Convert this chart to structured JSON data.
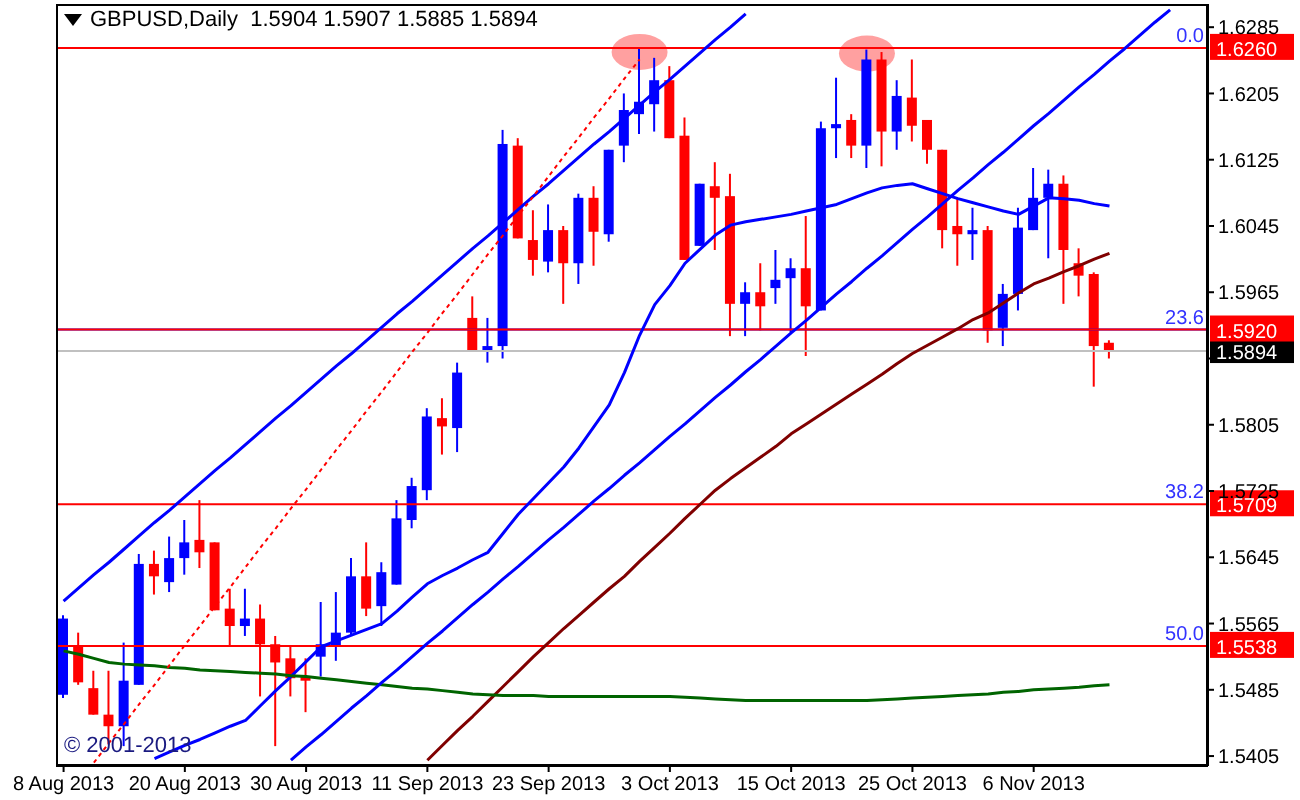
{
  "chart_data": {
    "type": "candlestick",
    "title": "GBPUSD,Daily  1.5904 1.5907 1.5885 1.5894",
    "categories": [
      "8 Aug 2013",
      null,
      null,
      null,
      null,
      null,
      null,
      null,
      "20 Aug 2013",
      null,
      null,
      null,
      null,
      null,
      null,
      null,
      "30 Aug 2013",
      null,
      null,
      null,
      null,
      null,
      null,
      null,
      "11 Sep 2013",
      null,
      null,
      null,
      null,
      null,
      null,
      null,
      "23 Sep 2013",
      null,
      null,
      null,
      null,
      null,
      null,
      null,
      "3 Oct 2013",
      null,
      null,
      null,
      null,
      null,
      null,
      null,
      "15 Oct 2013",
      null,
      null,
      null,
      null,
      null,
      null,
      null,
      "25 Oct 2013",
      null,
      null,
      null,
      null,
      null,
      null,
      null,
      "6 Nov 2013",
      null,
      null,
      null,
      null,
      null,
      null,
      null,
      null,
      null,
      null,
      null
    ],
    "ohlc": [
      [
        1.5479,
        1.5575,
        1.5475,
        1.5571
      ],
      [
        1.5537,
        1.5554,
        1.5491,
        1.5494
      ],
      [
        1.5487,
        1.5508,
        1.5455,
        1.5455
      ],
      [
        1.5455,
        1.5508,
        1.5419,
        1.5441
      ],
      [
        1.5441,
        1.5542,
        1.5417,
        1.5496
      ],
      [
        1.5491,
        1.5649,
        1.5491,
        1.5637
      ],
      [
        1.5637,
        1.5653,
        1.56,
        1.5622
      ],
      [
        1.5615,
        1.567,
        1.5603,
        1.5644
      ],
      [
        1.5644,
        1.569,
        1.5624,
        1.5663
      ],
      [
        1.5666,
        1.5714,
        1.5632,
        1.5651
      ],
      [
        1.5663,
        1.5663,
        1.5581,
        1.5581
      ],
      [
        1.5583,
        1.5607,
        1.5537,
        1.5562
      ],
      [
        1.5562,
        1.5607,
        1.555,
        1.5571
      ],
      [
        1.5571,
        1.5588,
        1.5477,
        1.554
      ],
      [
        1.554,
        1.555,
        1.5417,
        1.5518
      ],
      [
        1.5523,
        1.5537,
        1.5477,
        1.5499
      ],
      [
        1.5501,
        1.5523,
        1.5458,
        1.5496
      ],
      [
        1.5525,
        1.5591,
        1.5501,
        1.554
      ],
      [
        1.5537,
        1.5603,
        1.552,
        1.5554
      ],
      [
        1.5554,
        1.5644,
        1.5551,
        1.5622
      ],
      [
        1.5622,
        1.5663,
        1.5574,
        1.5583
      ],
      [
        1.5586,
        1.5639,
        1.5562,
        1.5627
      ],
      [
        1.5612,
        1.5714,
        1.5612,
        1.5692
      ],
      [
        1.569,
        1.5741,
        1.568,
        1.5731
      ],
      [
        1.5726,
        1.5825,
        1.5714,
        1.5815
      ],
      [
        1.5813,
        1.5837,
        1.5769,
        1.5803
      ],
      [
        1.5801,
        1.588,
        1.5772,
        1.5868
      ],
      [
        1.5934,
        1.596,
        1.5893,
        1.5893
      ],
      [
        1.5893,
        1.5934,
        1.588,
        1.59
      ],
      [
        1.59,
        1.6161,
        1.5885,
        1.6144
      ],
      [
        1.6142,
        1.6151,
        1.603,
        1.603
      ],
      [
        1.6028,
        1.6064,
        1.5985,
        1.6004
      ],
      [
        1.6002,
        1.6071,
        1.5989,
        1.604
      ],
      [
        1.604,
        1.6045,
        1.5951,
        1.6
      ],
      [
        1.6,
        1.6084,
        1.5975,
        1.6079
      ],
      [
        1.6079,
        1.6093,
        1.5997,
        1.6038
      ],
      [
        1.6035,
        1.6137,
        1.6026,
        1.6137
      ],
      [
        1.6142,
        1.6205,
        1.6122,
        1.6185
      ],
      [
        1.618,
        1.626,
        1.6156,
        1.6195
      ],
      [
        1.6192,
        1.6248,
        1.6159,
        1.6221
      ],
      [
        1.6221,
        1.6238,
        1.6151,
        1.6151
      ],
      [
        1.6154,
        1.6176,
        1.6004,
        1.6004
      ],
      [
        1.6021,
        1.6096,
        1.6021,
        1.6096
      ],
      [
        1.6093,
        1.6122,
        1.6016,
        1.6079
      ],
      [
        1.6081,
        1.6108,
        1.5912,
        1.5951
      ],
      [
        1.5951,
        1.5977,
        1.5912,
        1.5965
      ],
      [
        1.5965,
        1.6,
        1.5919,
        1.5948
      ],
      [
        1.597,
        1.6016,
        1.5951,
        1.598
      ],
      [
        1.5982,
        1.6006,
        1.5917,
        1.5994
      ],
      [
        1.5994,
        1.6057,
        1.5888,
        1.5948
      ],
      [
        1.5943,
        1.6171,
        1.5943,
        1.6163
      ],
      [
        1.6163,
        1.6224,
        1.6127,
        1.6168
      ],
      [
        1.6173,
        1.618,
        1.6127,
        1.6142
      ],
      [
        1.6142,
        1.6258,
        1.6115,
        1.6246
      ],
      [
        1.6246,
        1.6255,
        1.6117,
        1.6159
      ],
      [
        1.6159,
        1.6221,
        1.6137,
        1.6202
      ],
      [
        1.62,
        1.6246,
        1.6147,
        1.6166
      ],
      [
        1.6173,
        1.6173,
        1.612,
        1.6137
      ],
      [
        1.6137,
        1.6137,
        1.6018,
        1.604
      ],
      [
        1.6045,
        1.6079,
        1.5997,
        1.6035
      ],
      [
        1.6035,
        1.6067,
        1.6004,
        1.604
      ],
      [
        1.604,
        1.6045,
        1.5904,
        1.5919
      ],
      [
        1.5922,
        1.5975,
        1.59,
        1.5963
      ],
      [
        1.5963,
        1.6067,
        1.5943,
        1.6043
      ],
      [
        1.604,
        1.6115,
        1.604,
        1.6079
      ],
      [
        1.6079,
        1.6113,
        1.6006,
        1.6096
      ],
      [
        1.6096,
        1.6106,
        1.5951,
        1.6016
      ],
      [
        1.6,
        1.6018,
        1.596,
        1.5985
      ],
      [
        1.5987,
        1.5989,
        1.5851,
        1.59
      ],
      [
        1.5904,
        1.5907,
        1.5885,
        1.5894
      ],
      null,
      null,
      null,
      null,
      null,
      null
    ],
    "colors": [
      "#0000ff",
      "#ff0000",
      "#ff0000",
      "#ff0000",
      "#0000ff",
      "#0000ff",
      "#ff0000",
      "#0000ff",
      "#0000ff",
      "#ff0000",
      "#ff0000",
      "#ff0000",
      "#0000ff",
      "#ff0000",
      "#ff0000",
      "#ff0000",
      "#ff0000",
      "#0000ff",
      "#0000ff",
      "#0000ff",
      "#ff0000",
      "#0000ff",
      "#0000ff",
      "#0000ff",
      "#0000ff",
      "#ff0000",
      "#0000ff",
      "#ff0000",
      "#0000ff",
      "#0000ff",
      "#ff0000",
      "#ff0000",
      "#0000ff",
      "#ff0000",
      "#0000ff",
      "#ff0000",
      "#0000ff",
      "#0000ff",
      "#0000ff",
      "#0000ff",
      "#ff0000",
      "#ff0000",
      "#0000ff",
      "#ff0000",
      "#ff0000",
      "#0000ff",
      "#ff0000",
      "#0000ff",
      "#0000ff",
      "#ff0000",
      "#0000ff",
      "#0000ff",
      "#ff0000",
      "#0000ff",
      "#ff0000",
      "#0000ff",
      "#ff0000",
      "#ff0000",
      "#ff0000",
      "#ff0000",
      "#0000ff",
      "#ff0000",
      "#0000ff",
      "#0000ff",
      "#0000ff",
      "#0000ff",
      "#ff0000",
      "#ff0000",
      "#ff0000",
      "#ff0000",
      null,
      null,
      null,
      null,
      null,
      null
    ],
    "series": [
      {
        "type": "line",
        "color": "#0000ff",
        "values": [
          null,
          null,
          null,
          null,
          null,
          null,
          1.5402,
          1.541,
          1.5418,
          1.5425,
          1.5433,
          1.5441,
          1.5448,
          1.5466,
          1.5484,
          1.5501,
          1.5519,
          1.5537,
          1.5544,
          1.5551,
          1.5558,
          1.5565,
          1.558,
          1.5597,
          1.5613,
          1.5623,
          1.5632,
          1.5642,
          1.5651,
          1.5674,
          1.5697,
          1.5716,
          1.5735,
          1.5754,
          1.5777,
          1.5803,
          1.5829,
          1.5868,
          1.5913,
          1.595,
          1.5973,
          1.6,
          1.6017,
          1.6034,
          1.6046,
          1.605,
          1.6053,
          1.6056,
          1.6059,
          1.6063,
          1.6067,
          1.6071,
          1.6078,
          1.6085,
          1.6091,
          1.6094,
          1.6096,
          1.609,
          1.6084,
          1.6078,
          1.6073,
          1.6068,
          1.6063,
          1.6059,
          1.6069,
          1.6079,
          1.6078,
          1.6076,
          1.6072,
          1.6069,
          null,
          null,
          null,
          null,
          null,
          null
        ]
      },
      {
        "type": "line",
        "color": "#800000",
        "values": [
          null,
          null,
          null,
          null,
          null,
          null,
          null,
          null,
          null,
          null,
          null,
          null,
          null,
          null,
          null,
          null,
          null,
          null,
          null,
          null,
          null,
          null,
          null,
          null,
          1.54,
          1.5418,
          1.5436,
          1.5453,
          1.5471,
          1.5489,
          1.5507,
          1.5525,
          1.5542,
          1.5559,
          1.5575,
          1.5591,
          1.5607,
          1.5622,
          1.564,
          1.5657,
          1.5674,
          1.5692,
          1.5709,
          1.5726,
          1.574,
          1.5753,
          1.5766,
          1.5779,
          1.5794,
          1.5806,
          1.5818,
          1.583,
          1.5842,
          1.5854,
          1.5866,
          1.5879,
          1.5891,
          1.5901,
          1.5911,
          1.5921,
          1.5932,
          1.594,
          1.5952,
          1.5964,
          1.5975,
          1.5982,
          1.599,
          1.5997,
          1.6005,
          1.6012,
          null,
          null,
          null,
          null,
          null,
          null
        ]
      },
      {
        "type": "line",
        "color": "#006400",
        "values": [
          1.5532,
          1.5528,
          1.5523,
          1.5518,
          1.5516,
          1.5515,
          1.5514,
          1.5512,
          1.5511,
          1.5509,
          1.5508,
          1.5507,
          1.5506,
          1.5505,
          1.5504,
          1.5502,
          1.5501,
          1.5499,
          1.5497,
          1.5495,
          1.5493,
          1.5491,
          1.5489,
          1.5487,
          1.5486,
          1.5484,
          1.5482,
          1.548,
          1.5479,
          1.5478,
          1.5478,
          1.5478,
          1.5477,
          1.5477,
          1.5477,
          1.5477,
          1.5477,
          1.5477,
          1.5477,
          1.5477,
          1.5477,
          1.5476,
          1.5475,
          1.5474,
          1.5473,
          1.5472,
          1.5472,
          1.5472,
          1.5472,
          1.5472,
          1.5472,
          1.5472,
          1.5472,
          1.5472,
          1.5473,
          1.5474,
          1.5475,
          1.5476,
          1.5477,
          1.5478,
          1.5479,
          1.548,
          1.5482,
          1.5483,
          1.5485,
          1.5486,
          1.5487,
          1.5488,
          1.549,
          1.5491,
          null,
          null,
          null,
          null,
          null,
          null
        ]
      },
      {
        "type": "line",
        "color": "#0000ff",
        "values": [
          1.5592,
          1.5608,
          1.5624,
          1.5639,
          1.5655,
          1.5671,
          1.5687,
          1.5702,
          1.5718,
          1.5734,
          1.575,
          1.5765,
          1.5781,
          1.5797,
          1.5813,
          1.5828,
          1.5844,
          1.586,
          1.5876,
          1.5891,
          1.5907,
          1.5923,
          1.5939,
          1.5954,
          1.597,
          1.5986,
          1.6002,
          1.6018,
          1.6033,
          1.6049,
          1.6065,
          1.6081,
          1.6096,
          1.6112,
          1.6128,
          1.6144,
          1.6159,
          1.6175,
          1.6191,
          1.6207,
          1.6222,
          1.6238,
          1.6254,
          1.627,
          1.6285,
          1.6301,
          null,
          null,
          null,
          null,
          null,
          null,
          null,
          null,
          null,
          null,
          null,
          null,
          null,
          null,
          null,
          null,
          null,
          null,
          null,
          null,
          null,
          null,
          null,
          null,
          null,
          null,
          null,
          null,
          null,
          null
        ]
      },
      {
        "type": "line",
        "color": "#0000ff",
        "values": [
          null,
          null,
          null,
          null,
          null,
          null,
          null,
          null,
          null,
          null,
          null,
          null,
          null,
          null,
          null,
          1.54,
          1.5416,
          1.5431,
          1.5447,
          1.5463,
          1.5478,
          1.5494,
          1.5509,
          1.5525,
          1.5541,
          1.5556,
          1.5572,
          1.5588,
          1.5603,
          1.5619,
          1.5634,
          1.565,
          1.5666,
          1.5681,
          1.5697,
          1.5713,
          1.5728,
          1.5744,
          1.5759,
          1.5775,
          1.5791,
          1.5806,
          1.5822,
          1.5838,
          1.5853,
          1.5869,
          1.5884,
          1.59,
          1.5916,
          1.5931,
          1.5947,
          1.5963,
          1.5978,
          1.5994,
          1.6009,
          1.6025,
          1.6041,
          1.6056,
          1.6072,
          1.6088,
          1.6103,
          1.6119,
          1.6134,
          1.615,
          1.6166,
          1.6181,
          1.6197,
          1.6213,
          1.6228,
          1.6244,
          1.6259,
          1.6275,
          1.6291,
          1.6306,
          null,
          null
        ]
      },
      {
        "type": "line",
        "color": "#ff0000",
        "line_style": "dotted",
        "values": [
          null,
          null,
          1.5397,
          1.5421,
          1.5444,
          1.5468,
          1.5491,
          1.5515,
          1.5539,
          1.5562,
          1.5586,
          1.5609,
          1.5633,
          1.5657,
          1.568,
          1.5704,
          1.5727,
          1.5751,
          1.5775,
          1.5798,
          1.5822,
          1.5845,
          1.5869,
          1.5893,
          1.5916,
          1.594,
          1.5963,
          1.5987,
          1.6011,
          1.6034,
          1.6058,
          1.6081,
          1.6105,
          1.6129,
          1.6152,
          1.6176,
          1.6199,
          1.6223,
          1.6246,
          null,
          null,
          null,
          null,
          null,
          null,
          null,
          null,
          null,
          null,
          null,
          null,
          null,
          null,
          null,
          null,
          null,
          null,
          null,
          null,
          null,
          null,
          null,
          null,
          null,
          null,
          null,
          null,
          null,
          null,
          null,
          null,
          null,
          null,
          null,
          null,
          null
        ]
      }
    ],
    "ylim": [
      1.5393,
      1.6313
    ],
    "yticks": [
      1.5405,
      1.5485,
      1.5565,
      1.5645,
      1.5725,
      1.5805,
      {
        "value": 1.5885,
        "label": null
      },
      1.5965,
      1.6045,
      1.6125,
      1.6205,
      1.6285
    ],
    "ref_lines": [
      {
        "axis": "y",
        "value": 1.592,
        "color": "#0000ff"
      },
      {
        "axis": "y",
        "value": 1.5894,
        "label": "1.5894",
        "color": "#c0c0c0"
      },
      {
        "axis": "y",
        "value": 1.626,
        "label": "1.6260",
        "color": "#ff0000"
      },
      {
        "axis": "y",
        "value": 1.592,
        "label": "1.5920",
        "color": "#ff0000"
      },
      {
        "axis": "y",
        "value": 1.5709,
        "label": "1.5709",
        "color": "#ff0000"
      },
      {
        "axis": "y",
        "value": 1.5538,
        "label": "1.5538",
        "color": "#ff0000"
      }
    ],
    "annotations": [
      {
        "text": "0.0",
        "y": 1.626
      },
      {
        "text": "23.6",
        "y": 1.592
      },
      {
        "text": "38.2",
        "y": 1.5709
      },
      {
        "text": "50.0",
        "y": 1.5538
      },
      "© 2001-2013"
    ]
  }
}
